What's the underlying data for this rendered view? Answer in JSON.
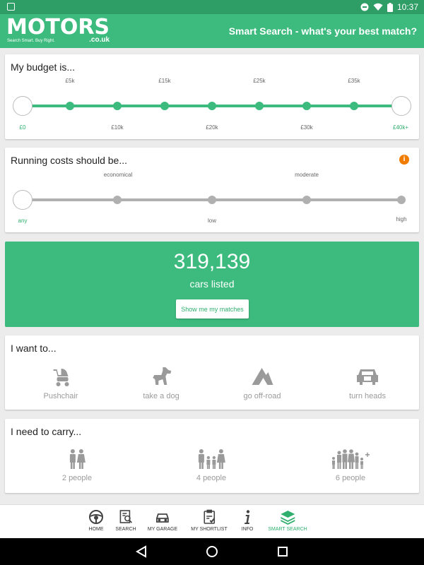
{
  "status_bar": {
    "time": "10:37"
  },
  "app_bar": {
    "logo_word": "MOTORS",
    "logo_suffix": ".co.uk",
    "logo_tagline": "Search Smart. Buy Right.",
    "title": "Smart Search - what's your best match?"
  },
  "budget": {
    "title": "My budget is...",
    "top_labels": [
      "£5k",
      "£15k",
      "£25k",
      "£35k"
    ],
    "bottom_labels": [
      "£0",
      "£10k",
      "£20k",
      "£30k",
      "£40k+"
    ],
    "selected_min": "£0",
    "selected_max": "£40k+"
  },
  "running_costs": {
    "title": "Running costs should be...",
    "info_icon": "i",
    "top_labels": [
      "economical",
      "moderate"
    ],
    "bottom_labels": [
      "any",
      "low",
      "high"
    ],
    "selected": "any"
  },
  "listing": {
    "count": "319,139",
    "subtitle": "cars listed",
    "button_label": "Show me my matches"
  },
  "want_to": {
    "title": "I want to...",
    "options": [
      {
        "label": "Pushchair",
        "icon": "pushchair-icon"
      },
      {
        "label": "take a dog",
        "icon": "dog-icon"
      },
      {
        "label": "go off-road",
        "icon": "mountain-icon"
      },
      {
        "label": "turn heads",
        "icon": "luxury-car-icon"
      }
    ]
  },
  "carry": {
    "title": "I need to carry...",
    "options": [
      {
        "label": "2 people",
        "icon": "two-people-icon"
      },
      {
        "label": "4 people",
        "icon": "family-icon"
      },
      {
        "label": "6 people",
        "icon": "large-family-icon"
      }
    ]
  },
  "bottom_nav": {
    "items": [
      {
        "label": "HOME",
        "icon": "steering-wheel-icon"
      },
      {
        "label": "SEARCH",
        "icon": "search-doc-icon"
      },
      {
        "label": "MY GARAGE",
        "icon": "car-icon"
      },
      {
        "label": "MY SHORTLIST",
        "icon": "clipboard-icon"
      },
      {
        "label": "INFO",
        "icon": "info-icon"
      },
      {
        "label": "SMART SEARCH",
        "icon": "layers-icon"
      }
    ],
    "active": "SMART SEARCH"
  },
  "colors": {
    "brand_green": "#3dbb7e",
    "accent_orange": "#f07c00",
    "slider_grey": "#b0b0b0"
  }
}
